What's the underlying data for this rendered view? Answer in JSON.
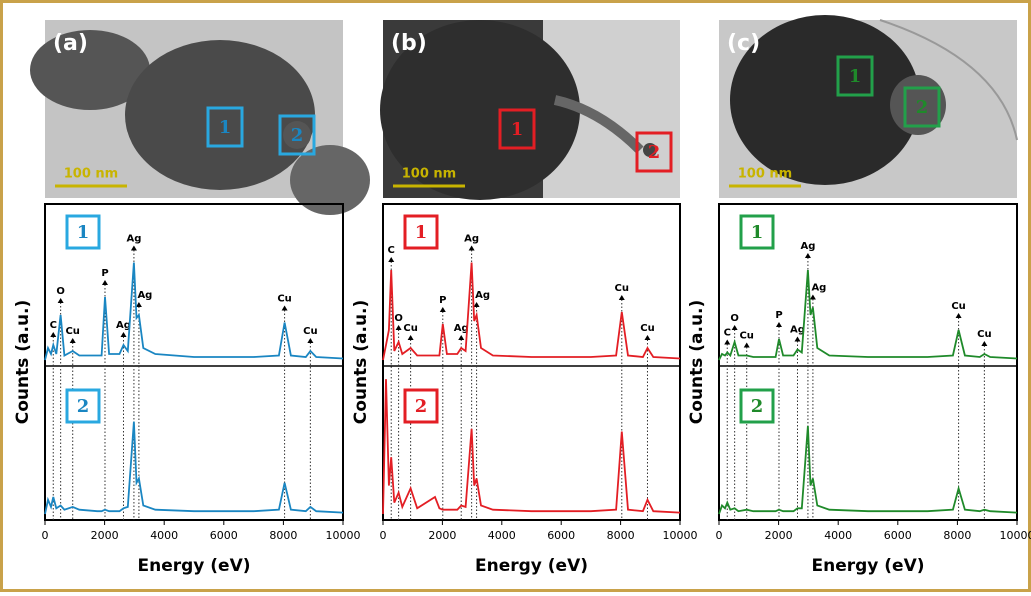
{
  "chart_data": [
    {
      "type": "line",
      "panel_label": "(a)",
      "scale_bar": "100 nm",
      "xlabel": "Energy (eV)",
      "ylabel": "Counts (a.u.)",
      "xlim": [
        0,
        10000
      ],
      "xticks": [
        0,
        2000,
        4000,
        6000,
        8000,
        10000
      ],
      "ylim": [
        0,
        100
      ],
      "x": [
        0,
        100,
        200,
        277,
        380,
        525,
        650,
        930,
        1150,
        1750,
        1900,
        2013,
        2150,
        2500,
        2634,
        2780,
        2984,
        3070,
        3151,
        3300,
        3700,
        5000,
        7000,
        7850,
        8040,
        8250,
        8750,
        8905,
        9100,
        10000
      ],
      "series": [
        {
          "name": "1",
          "color": "#1a86c2",
          "values": [
            0,
            8,
            4,
            10,
            4,
            30,
            3,
            6,
            3,
            3,
            3,
            42,
            4,
            4,
            10,
            6,
            65,
            28,
            30,
            8,
            4,
            2,
            2,
            3,
            25,
            3,
            2,
            6,
            2,
            1
          ]
        },
        {
          "name": "2",
          "color": "#1a86c2",
          "values": [
            0,
            10,
            5,
            12,
            4,
            6,
            3,
            5,
            3,
            2,
            2,
            3,
            2,
            2,
            4,
            5,
            65,
            22,
            25,
            6,
            3,
            2,
            2,
            3,
            22,
            3,
            2,
            5,
            2,
            1
          ]
        }
      ],
      "annotations": [
        {
          "text": "C",
          "x": 277
        },
        {
          "text": "O",
          "x": 525
        },
        {
          "text": "Cu",
          "x": 930
        },
        {
          "text": "P",
          "x": 2013
        },
        {
          "text": "Ag",
          "x": 2634
        },
        {
          "text": "Ag",
          "x": 2984
        },
        {
          "text": "Ag",
          "x": 3151
        },
        {
          "text": "Cu",
          "x": 8040
        },
        {
          "text": "Cu",
          "x": 8905
        }
      ]
    },
    {
      "type": "line",
      "panel_label": "(b)",
      "scale_bar": "100 nm",
      "xlabel": "Energy (eV)",
      "ylabel": "Counts (a.u.)",
      "xlim": [
        0,
        10000
      ],
      "xticks": [
        0,
        2000,
        4000,
        6000,
        8000,
        10000
      ],
      "ylim": [
        0,
        100
      ],
      "x": [
        0,
        100,
        200,
        277,
        380,
        525,
        650,
        930,
        1150,
        1750,
        1900,
        2013,
        2150,
        2500,
        2634,
        2780,
        2984,
        3070,
        3151,
        3300,
        3700,
        5000,
        7000,
        7850,
        8040,
        8250,
        8750,
        8905,
        9100,
        10000
      ],
      "series": [
        {
          "name": "1",
          "color": "#e31e24",
          "values": [
            0,
            10,
            20,
            60,
            6,
            12,
            4,
            8,
            3,
            3,
            3,
            24,
            4,
            4,
            8,
            6,
            65,
            26,
            30,
            8,
            3,
            2,
            2,
            3,
            32,
            3,
            2,
            8,
            2,
            1
          ]
        },
        {
          "name": "2",
          "color": "#e31e24",
          "values": [
            0,
            95,
            20,
            40,
            8,
            15,
            5,
            18,
            4,
            12,
            4,
            3,
            3,
            3,
            6,
            5,
            60,
            20,
            25,
            6,
            3,
            2,
            2,
            3,
            58,
            3,
            2,
            10,
            2,
            1
          ]
        }
      ],
      "annotations": [
        {
          "text": "C",
          "x": 277
        },
        {
          "text": "O",
          "x": 525
        },
        {
          "text": "Cu",
          "x": 930
        },
        {
          "text": "P",
          "x": 2013
        },
        {
          "text": "Ag",
          "x": 2634
        },
        {
          "text": "Ag",
          "x": 2984
        },
        {
          "text": "Ag",
          "x": 3151
        },
        {
          "text": "Cu",
          "x": 8040
        },
        {
          "text": "Cu",
          "x": 8905
        }
      ]
    },
    {
      "type": "line",
      "panel_label": "(c)",
      "scale_bar": "100 nm",
      "xlabel": "Energy (eV)",
      "ylabel": "Counts (a.u.)",
      "xlim": [
        0,
        10000
      ],
      "xticks": [
        0,
        2000,
        4000,
        6000,
        8000,
        10000
      ],
      "ylim": [
        0,
        100
      ],
      "x": [
        0,
        100,
        200,
        277,
        380,
        525,
        650,
        930,
        1150,
        1750,
        1900,
        2013,
        2150,
        2500,
        2634,
        2780,
        2984,
        3070,
        3151,
        3300,
        3700,
        5000,
        7000,
        7850,
        8040,
        8250,
        8750,
        8905,
        9100,
        10000
      ],
      "series": [
        {
          "name": "1",
          "color": "#1f8a2a",
          "values": [
            0,
            4,
            3,
            5,
            3,
            12,
            3,
            3,
            2,
            2,
            2,
            14,
            3,
            3,
            7,
            5,
            60,
            30,
            35,
            8,
            3,
            2,
            2,
            3,
            20,
            3,
            2,
            4,
            2,
            1
          ]
        },
        {
          "name": "2",
          "color": "#1f8a2a",
          "values": [
            0,
            6,
            4,
            8,
            3,
            4,
            2,
            3,
            2,
            2,
            2,
            3,
            2,
            2,
            4,
            4,
            62,
            20,
            25,
            6,
            3,
            2,
            2,
            3,
            18,
            3,
            2,
            3,
            2,
            1
          ]
        }
      ],
      "annotations": [
        {
          "text": "C",
          "x": 277
        },
        {
          "text": "O",
          "x": 525
        },
        {
          "text": "Cu",
          "x": 930
        },
        {
          "text": "P",
          "x": 2013
        },
        {
          "text": "Ag",
          "x": 2634
        },
        {
          "text": "Ag",
          "x": 2984
        },
        {
          "text": "Ag",
          "x": 3151
        },
        {
          "text": "Cu",
          "x": 8040
        },
        {
          "text": "Cu",
          "x": 8905
        }
      ]
    }
  ]
}
